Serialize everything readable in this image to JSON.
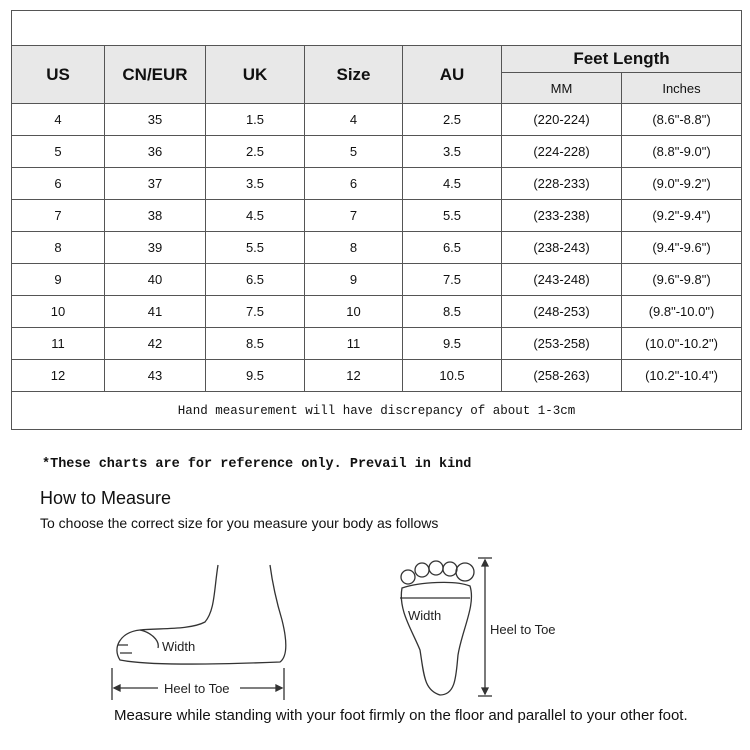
{
  "table": {
    "headers": [
      "US",
      "CN/EUR",
      "UK",
      "Size",
      "AU"
    ],
    "feet_length": {
      "label": "Feet Length",
      "mm": "MM",
      "inches": "Inches"
    },
    "rows": [
      [
        "4",
        "35",
        "1.5",
        "4",
        "2.5",
        "(220-224)",
        "(8.6\"-8.8\")"
      ],
      [
        "5",
        "36",
        "2.5",
        "5",
        "3.5",
        "(224-228)",
        "(8.8\"-9.0\")"
      ],
      [
        "6",
        "37",
        "3.5",
        "6",
        "4.5",
        "(228-233)",
        "(9.0\"-9.2\")"
      ],
      [
        "7",
        "38",
        "4.5",
        "7",
        "5.5",
        "(233-238)",
        "(9.2\"-9.4\")"
      ],
      [
        "8",
        "39",
        "5.5",
        "8",
        "6.5",
        "(238-243)",
        "(9.4\"-9.6\")"
      ],
      [
        "9",
        "40",
        "6.5",
        "9",
        "7.5",
        "(243-248)",
        "(9.6\"-9.8\")"
      ],
      [
        "10",
        "41",
        "7.5",
        "10",
        "8.5",
        "(248-253)",
        "(9.8\"-10.0\")"
      ],
      [
        "11",
        "42",
        "8.5",
        "11",
        "9.5",
        "(253-258)",
        "(10.0\"-10.2\")"
      ],
      [
        "12",
        "43",
        "9.5",
        "12",
        "10.5",
        "(258-263)",
        "(10.2\"-10.4\")"
      ]
    ],
    "footer": "Hand measurement will have discrepancy of about 1-3cm"
  },
  "note": "*These charts are for reference only. Prevail in kind",
  "how_to": {
    "title": "How to Measure",
    "subtitle": "To choose the correct size for you measure your body as follows"
  },
  "diagram": {
    "side_width": "Width",
    "side_length": "Heel to Toe",
    "top_width": "Width",
    "top_length": "Heel to Toe"
  },
  "instruction": "Measure while standing with your foot firmly on the floor and parallel to your other foot."
}
